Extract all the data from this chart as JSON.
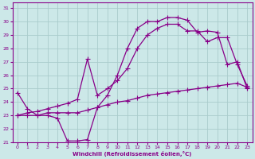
{
  "xlabel": "Windchill (Refroidissement éolien,°C)",
  "bg_color": "#cce8e8",
  "grid_color": "#aacccc",
  "line_color": "#880088",
  "xlim": [
    -0.5,
    23.5
  ],
  "ylim": [
    21,
    31.4
  ],
  "xticks": [
    0,
    1,
    2,
    3,
    4,
    5,
    6,
    7,
    8,
    9,
    10,
    11,
    12,
    13,
    14,
    15,
    16,
    17,
    18,
    19,
    20,
    21,
    22,
    23
  ],
  "yticks": [
    21,
    22,
    23,
    24,
    25,
    26,
    27,
    28,
    29,
    30,
    31
  ],
  "line1_x": [
    0,
    1,
    2,
    3,
    4,
    5,
    6,
    7,
    8,
    9,
    10,
    11,
    12,
    13,
    14,
    15,
    16,
    17,
    18,
    19,
    20,
    21,
    22,
    23
  ],
  "line1_y": [
    24.7,
    23.5,
    23.0,
    23.0,
    22.8,
    21.1,
    21.1,
    21.2,
    23.6,
    24.5,
    26.0,
    28.0,
    29.5,
    30.0,
    30.0,
    30.3,
    30.3,
    30.1,
    29.2,
    29.3,
    29.2,
    26.8,
    27.0,
    25.0
  ],
  "line2_x": [
    0,
    1,
    2,
    3,
    4,
    5,
    6,
    7,
    8,
    9,
    10,
    11,
    12,
    13,
    14,
    15,
    16,
    17,
    18,
    19,
    20,
    21,
    22,
    23
  ],
  "line2_y": [
    23.0,
    23.0,
    23.0,
    23.2,
    23.2,
    23.2,
    23.2,
    23.4,
    23.6,
    23.8,
    24.0,
    24.1,
    24.3,
    24.5,
    24.6,
    24.7,
    24.8,
    24.9,
    25.0,
    25.1,
    25.2,
    25.3,
    25.4,
    25.1
  ],
  "line3_x": [
    0,
    1,
    2,
    3,
    4,
    5,
    6,
    7,
    8,
    9,
    10,
    11,
    12,
    13,
    14,
    15,
    16,
    17,
    18,
    19,
    20,
    21,
    22,
    23
  ],
  "line3_y": [
    23.0,
    23.2,
    23.3,
    23.5,
    23.7,
    23.9,
    24.2,
    27.2,
    24.5,
    25.0,
    25.6,
    26.5,
    28.0,
    29.0,
    29.5,
    29.8,
    29.8,
    29.3,
    29.3,
    28.5,
    28.8,
    28.8,
    26.8,
    25.2
  ]
}
